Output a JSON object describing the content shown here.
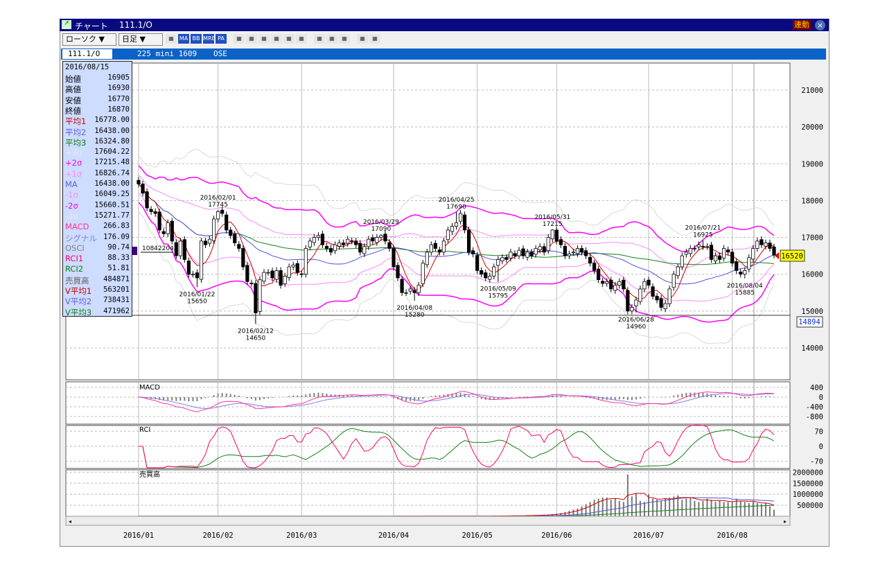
{
  "window": {
    "title": "チャート",
    "symbol_title": "111.1/O",
    "link_button": "連動",
    "close": "×"
  },
  "toolbar": {
    "chart_type": "ローソク ▼",
    "period": "日足 ▼",
    "tools": [
      "link-icon",
      "MA",
      "BB",
      "MRE",
      "PA",
      "chart-icon",
      "crosshair-icon",
      "yen-icon",
      "zoom-icon",
      "calc-icon",
      "table-icon",
      "pen-icon",
      "cursor-icon",
      "eraser-icon",
      "settings-icon",
      "fibonacci-icon"
    ]
  },
  "symbol_bar": {
    "code": "111.1/O",
    "name": "225 mini 1609",
    "exchange": "OSE"
  },
  "info_panel": {
    "date": "2016/08/15",
    "rows": [
      {
        "label": "始値",
        "value": "16905",
        "color": "#000000"
      },
      {
        "label": "高値",
        "value": "16930",
        "color": "#000000"
      },
      {
        "label": "安値",
        "value": "16770",
        "color": "#000000"
      },
      {
        "label": "終値",
        "value": "16870",
        "color": "#000000"
      },
      {
        "label": "平均1",
        "value": "16778.00",
        "color": "#d00000"
      },
      {
        "label": "平均2",
        "value": "16438.00",
        "color": "#6060e0"
      },
      {
        "label": "平均3",
        "value": "16324.80",
        "color": "#108010"
      },
      {
        "label": "+3σ",
        "value": "17604.22",
        "color": "#e8e8f0"
      },
      {
        "label": "+2σ",
        "value": "17215.48",
        "color": "#ff00ff"
      },
      {
        "label": "+1σ",
        "value": "16826.74",
        "color": "#ff88ff"
      },
      {
        "label": "MA",
        "value": "16438.00",
        "color": "#6060e0"
      },
      {
        "label": "-1σ",
        "value": "16049.25",
        "color": "#ff88ff"
      },
      {
        "label": "-2σ",
        "value": "15660.51",
        "color": "#ff00ff"
      },
      {
        "label": "-3σ",
        "value": "15271.77",
        "color": "#e8e8f0"
      },
      {
        "label": "MACD",
        "value": "266.83",
        "color": "#ff3399"
      },
      {
        "label": "シグナル",
        "value": "176.09",
        "color": "#8080e0"
      },
      {
        "label": "OSCI",
        "value": "90.74",
        "color": "#808080"
      },
      {
        "label": "RCI1",
        "value": "88.33",
        "color": "#ff0066"
      },
      {
        "label": "RCI2",
        "value": "51.81",
        "color": "#108010"
      },
      {
        "label": "売買高",
        "value": "484871",
        "color": "#606060"
      },
      {
        "label": "V平均1",
        "value": "563201",
        "color": "#c00000"
      },
      {
        "label": "V平均2",
        "value": "738431",
        "color": "#6060e0"
      },
      {
        "label": "V平均3",
        "value": "471962",
        "color": "#108010"
      }
    ]
  },
  "markers": {
    "left_value": "10842204",
    "current_price": "16520",
    "low_marker": "14894"
  },
  "panes": {
    "macd_label": "MACD",
    "rci_label": "RCI",
    "volume_label": "売買高"
  },
  "chart_data": {
    "type": "candlestick",
    "months": [
      {
        "label": "2016/01",
        "start": 0
      },
      {
        "label": "2016/02",
        "start": 19
      },
      {
        "label": "2016/03",
        "start": 39
      },
      {
        "label": "2016/04",
        "start": 61
      },
      {
        "label": "2016/05",
        "start": 81
      },
      {
        "label": "2016/06",
        "start": 100
      },
      {
        "label": "2016/07",
        "start": 122
      },
      {
        "label": "2016/08",
        "start": 142
      }
    ],
    "price_ylim": [
      13500,
      22000
    ],
    "price_ticks": [
      "21000",
      "20000",
      "19000",
      "18000",
      "17000",
      "16000",
      "15000",
      "14000"
    ],
    "macd_ticks": [
      "400",
      "0",
      "-400",
      "-800"
    ],
    "rci_ticks": [
      "70",
      "0",
      "-70"
    ],
    "volume_ticks": [
      "2000000",
      "1500000",
      "1000000",
      "500000"
    ],
    "closes": [
      18450,
      18200,
      17800,
      17700,
      17650,
      17200,
      17100,
      17400,
      16900,
      16500,
      16900,
      16400,
      16000,
      16000,
      15900,
      16900,
      16800,
      16950,
      17500,
      17700,
      17650,
      17200,
      17050,
      16850,
      16700,
      16200,
      15800,
      15750,
      14950,
      15850,
      16050,
      16050,
      15900,
      16100,
      15700,
      15950,
      16200,
      16250,
      16050,
      16000,
      16700,
      16900,
      17000,
      17050,
      16800,
      16700,
      16600,
      16800,
      16850,
      16800,
      16950,
      16900,
      16800,
      16600,
      16750,
      16950,
      16900,
      17000,
      17050,
      16900,
      16700,
      16200,
      15900,
      15500,
      15500,
      15600,
      15500,
      15700,
      16300,
      16600,
      16800,
      16700,
      16600,
      16900,
      17200,
      17300,
      17400,
      17650,
      17200,
      16600,
      16550,
      16100,
      16000,
      15900,
      15950,
      16200,
      16400,
      16450,
      16400,
      16600,
      16500,
      16650,
      16500,
      16600,
      16500,
      16700,
      16750,
      16600,
      17000,
      17200,
      16900,
      16800,
      16500,
      16550,
      16600,
      16700,
      16600,
      16500,
      16300,
      16100,
      15850,
      15750,
      15800,
      15600,
      15700,
      15800,
      15600,
      15000,
      15100,
      15300,
      15600,
      15800,
      15700,
      15400,
      15300,
      15100,
      15200,
      15600,
      16000,
      16200,
      16500,
      16600,
      16700,
      16700,
      16800,
      16750,
      16750,
      16400,
      16500,
      16400,
      16700,
      16600,
      16300,
      16100,
      16000,
      16100,
      16450,
      16700,
      16900,
      16800,
      16850,
      16700,
      16520
    ],
    "volume": [
      3000,
      3000,
      3000,
      3000,
      3000,
      3000,
      3000,
      3000,
      3000,
      3000,
      3000,
      3000,
      3000,
      3000,
      3000,
      3000,
      3000,
      3000,
      3000,
      3000,
      3000,
      3000,
      3000,
      3000,
      3000,
      3000,
      3000,
      3000,
      3000,
      3000,
      3000,
      3000,
      3000,
      3000,
      3000,
      3000,
      3000,
      3000,
      3000,
      4000,
      4000,
      4000,
      4000,
      4000,
      4000,
      4000,
      4000,
      4000,
      4000,
      4000,
      4000,
      4000,
      4000,
      4000,
      4000,
      4000,
      4000,
      4000,
      4000,
      4000,
      4000,
      6000,
      6000,
      6000,
      6000,
      6000,
      6000,
      6000,
      6000,
      6000,
      6000,
      6000,
      6000,
      6000,
      6000,
      6000,
      6000,
      6000,
      6000,
      6000,
      6000,
      10000,
      10000,
      12000,
      12000,
      15000,
      15000,
      20000,
      20000,
      25000,
      25000,
      30000,
      30000,
      40000,
      40000,
      50000,
      60000,
      70000,
      80000,
      100000,
      120000,
      150000,
      200000,
      250000,
      300000,
      350000,
      450000,
      550000,
      650000,
      750000,
      800000,
      850000,
      850000,
      750000,
      800000,
      700000,
      650000,
      1900000,
      900000,
      1050000,
      700000,
      650000,
      1000000,
      800000,
      750000,
      700000,
      800000,
      850000,
      900000,
      950000,
      750000,
      800000,
      850000,
      700000,
      650000,
      700000,
      800000,
      750000,
      650000,
      700000,
      650000,
      650000,
      650000,
      800000,
      700000,
      650000,
      600000,
      650000,
      600000,
      550000,
      600000,
      450000,
      300000
    ],
    "annotations": [
      {
        "date": "2016/01/22",
        "value": "15650",
        "index": 14,
        "pos": "below"
      },
      {
        "date": "2016/02/01",
        "value": "17745",
        "index": 19,
        "pos": "above"
      },
      {
        "date": "2016/02/12",
        "value": "14650",
        "index": 28,
        "pos": "below"
      },
      {
        "date": "2016/03/29",
        "value": "17090",
        "index": 58,
        "pos": "above"
      },
      {
        "date": "2016/04/08",
        "value": "15280",
        "index": 66,
        "pos": "below"
      },
      {
        "date": "2016/04/25",
        "value": "17690",
        "index": 76,
        "pos": "above"
      },
      {
        "date": "2016/05/09",
        "value": "15795",
        "index": 86,
        "pos": "below"
      },
      {
        "date": "2016/05/31",
        "value": "17215",
        "index": 99,
        "pos": "above"
      },
      {
        "date": "2016/06/28",
        "value": "14960",
        "index": 119,
        "pos": "below"
      },
      {
        "date": "2016/07/21",
        "value": "16925",
        "index": 135,
        "pos": "above"
      },
      {
        "date": "2016/08/04",
        "value": "15885",
        "index": 145,
        "pos": "below"
      }
    ],
    "colors": {
      "ma1": "#d00000",
      "ma2": "#5050e0",
      "ma3": "#108010",
      "bb2": "#ff00ff",
      "bb1": "#ff88ff",
      "bb3": "#d8d8d8",
      "macd": "#ff3399",
      "signal": "#8080e0",
      "osci": "#808080",
      "rci1": "#ff0066",
      "rci2": "#108010"
    }
  }
}
